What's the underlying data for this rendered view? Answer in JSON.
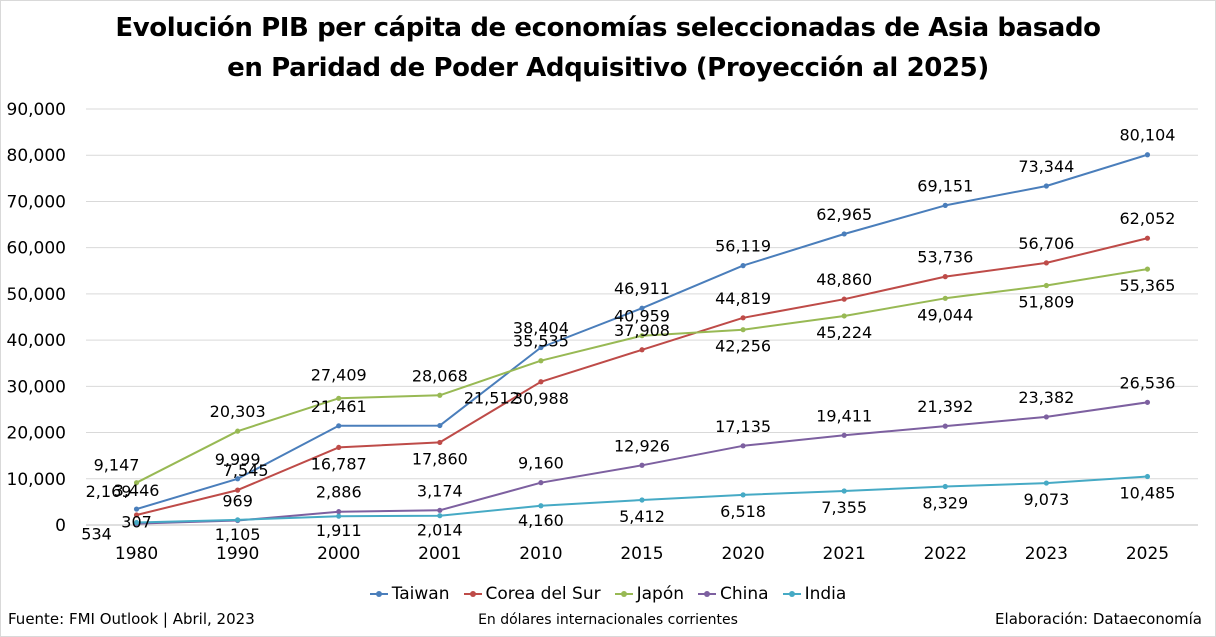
{
  "title_line1": "Evolución PIB per cápita de economías seleccionadas de Asia basado",
  "title_line2": "en Paridad de Poder Adquisitivo (Proyección al 2025)",
  "source": "Fuente: FMI Outlook | Abril, 2023",
  "note": "En dólares internacionales corrientes",
  "credit": "Elaboración: Dataeconomía",
  "chart_data": {
    "type": "line",
    "categories": [
      "1980",
      "1990",
      "2000",
      "2001",
      "2010",
      "2015",
      "2020",
      "2021",
      "2022",
      "2023",
      "2025"
    ],
    "ylim": [
      0,
      90000
    ],
    "yticks": [
      "0",
      "10,000",
      "20,000",
      "30,000",
      "40,000",
      "50,000",
      "60,000",
      "70,000",
      "80,000",
      "90,000"
    ],
    "grid": true,
    "legend_position": "bottom",
    "series": [
      {
        "name": "Taiwan",
        "color": "#4a7ebb",
        "values": [
          3446,
          9999,
          21461,
          21512,
          38404,
          46911,
          56119,
          62965,
          69151,
          73344,
          80104
        ],
        "labels": [
          "3,446",
          "9,999",
          "21,461",
          "21,512",
          "38,404",
          "46,911",
          "56,119",
          "62,965",
          "69,151",
          "73,344",
          "80,104"
        ]
      },
      {
        "name": "Corea del Sur",
        "color": "#be4b48",
        "values": [
          2169,
          7545,
          16787,
          17860,
          30988,
          37908,
          44819,
          48860,
          53736,
          56706,
          62052
        ],
        "labels": [
          "2,169",
          "7,545",
          "16,787",
          "17,860",
          "30,988",
          "37,908",
          "44,819",
          "48,860",
          "53,736",
          "56,706",
          "62,052"
        ]
      },
      {
        "name": "Japón",
        "color": "#98b954",
        "values": [
          9147,
          20303,
          27409,
          28068,
          35535,
          40959,
          42256,
          45224,
          49044,
          51809,
          55365
        ],
        "labels": [
          "9,147",
          "20,303",
          "27,409",
          "28,068",
          "35,535",
          "40,959",
          "42,256",
          "45,224",
          "49,044",
          "51,809",
          "55,365"
        ]
      },
      {
        "name": "China",
        "color": "#7d60a0",
        "values": [
          307,
          969,
          2886,
          3174,
          9160,
          12926,
          17135,
          19411,
          21392,
          23382,
          26536
        ],
        "labels": [
          "307",
          "969",
          "2,886",
          "3,174",
          "9,160",
          "12,926",
          "17,135",
          "19,411",
          "21,392",
          "23,382",
          "26,536"
        ]
      },
      {
        "name": "India",
        "color": "#46aac5",
        "values": [
          534,
          1105,
          1911,
          2014,
          4160,
          5412,
          6518,
          7355,
          8329,
          9073,
          10485
        ],
        "labels": [
          "534",
          "1,105",
          "1,911",
          "2,014",
          "4,160",
          "5,412",
          "6,518",
          "7,355",
          "8,329",
          "9,073",
          "10,485"
        ]
      }
    ]
  }
}
